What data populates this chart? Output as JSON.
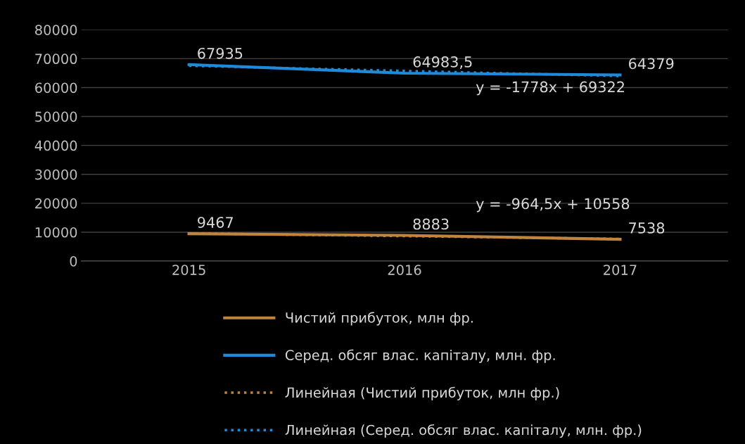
{
  "chart_data": {
    "type": "line",
    "categories": [
      "2015",
      "2016",
      "2017"
    ],
    "ylim": [
      0,
      80000
    ],
    "yticks": [
      0,
      10000,
      20000,
      30000,
      40000,
      50000,
      60000,
      70000,
      80000
    ],
    "grid": "y",
    "legend": "bottom",
    "marker": "none",
    "series": [
      {
        "name": "Чистий прибуток, млн фр.",
        "color": "#c0843f",
        "values": [
          9467,
          8883,
          7538
        ],
        "value_labels": [
          "9467",
          "8883",
          "7538"
        ],
        "line_style": "solid"
      },
      {
        "name": "Серед. обсяг влас. капіталу, млн. фр.",
        "color": "#1f8ad8",
        "values": [
          67935,
          64983.5,
          64379
        ],
        "value_labels": [
          "67935",
          "64983,5",
          "64379"
        ],
        "line_style": "solid"
      },
      {
        "name": "Линейная (Чистий прибуток, млн фр.)",
        "color": "#c0843f",
        "values": [
          9590,
          8630,
          7660
        ],
        "line_style": "dotted"
      },
      {
        "name": "Линейная (Серед. обсяг влас. капіталу, млн. фр.)",
        "color": "#1f8ad8",
        "values": [
          67540,
          65770,
          63990
        ],
        "line_style": "dotted"
      }
    ],
    "annotations": [
      "y = -1778x + 69322",
      "y = -964,5x + 10558"
    ]
  }
}
